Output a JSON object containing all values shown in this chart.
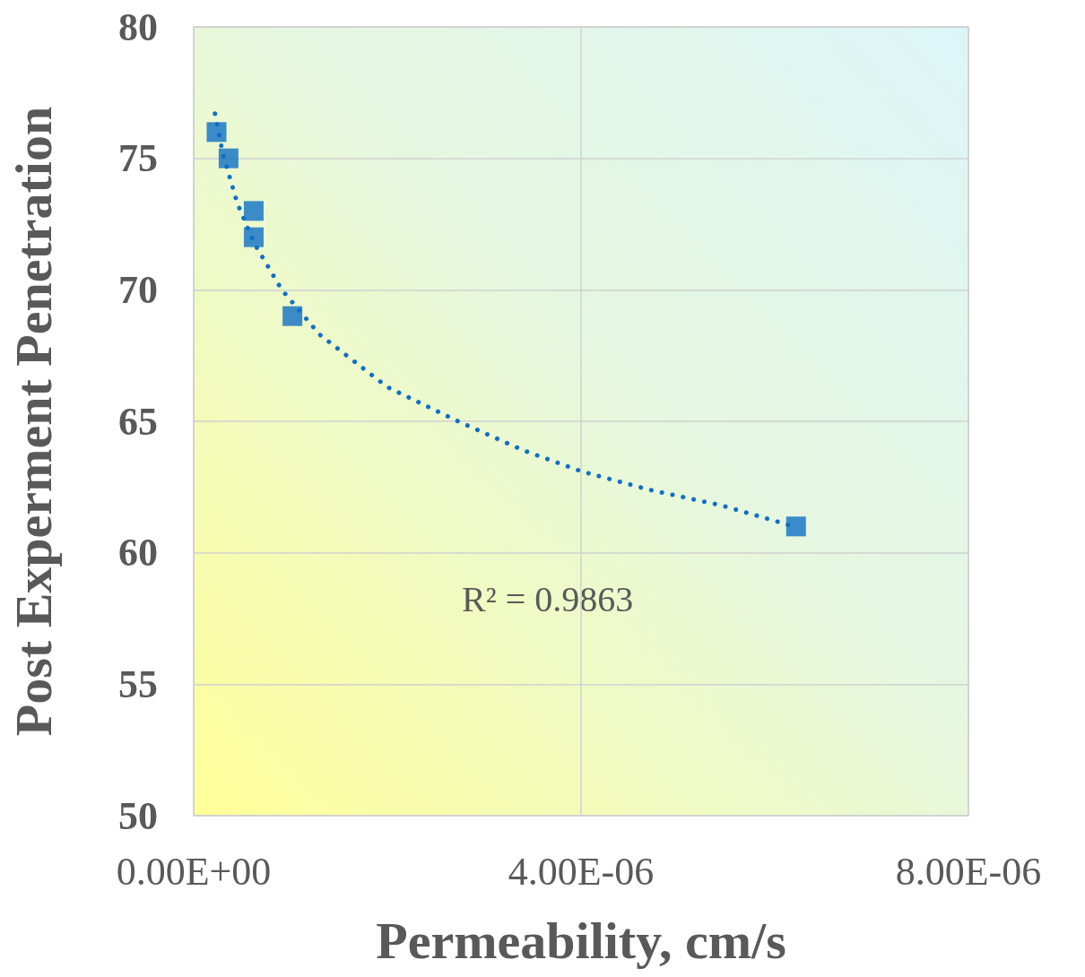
{
  "chart_data": {
    "type": "scatter",
    "xlabel": "Permeability, cm/s",
    "ylabel": "Post Experment Penetration",
    "xlim": [
      0,
      8e-06
    ],
    "xticks": [
      {
        "value": 0,
        "label": "0.00E+00"
      },
      {
        "value": 4e-06,
        "label": "4.00E-06"
      },
      {
        "value": 8e-06,
        "label": "8.00E-06"
      }
    ],
    "ylim": [
      50,
      80
    ],
    "yticks": [
      50,
      55,
      60,
      65,
      70,
      75,
      80
    ],
    "grid": true,
    "marker": "square",
    "series": [
      {
        "color": "#0f6fc6",
        "x": [
          2.36e-07,
          3.6e-07,
          6.2e-07,
          6.2e-07,
          1.02e-06,
          6.22e-06
        ],
        "values": [
          76.0,
          75.0,
          73.0,
          72.0,
          69.0,
          61.0
        ]
      },
      {
        "type": "line",
        "color": "#0f6fc6",
        "marker": "none",
        "line_style": "dotted",
        "x": [
          2.2e-07,
          3e-07,
          4.5e-07,
          6.2e-07,
          9.1e-07,
          1.3e-06,
          2e-06,
          2.73e-06,
          3.4e-06,
          4e-06,
          4.7e-06,
          5.45e-06,
          6.2e-06
        ],
        "values": [
          76.7,
          75.2,
          73.3,
          71.8,
          70.0,
          68.3,
          66.3,
          65.0,
          63.9,
          63.1,
          62.4,
          61.8,
          61.0
        ]
      }
    ],
    "annotations": [
      "R² = 0.9863"
    ]
  }
}
